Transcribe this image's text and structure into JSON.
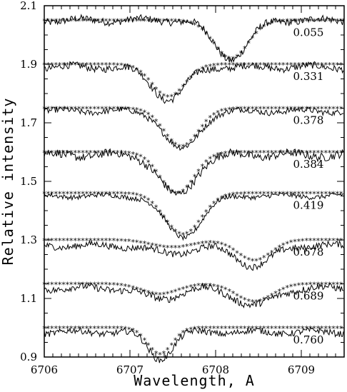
{
  "chart_data": {
    "type": "line",
    "xlabel": "Wavelength, A",
    "ylabel": "Relative intensity",
    "xlim": [
      6706,
      6709.5
    ],
    "ylim": [
      0.9,
      2.1
    ],
    "xticks": [
      "6706",
      "6707",
      "6708",
      "6709"
    ],
    "yticks": [
      "0.9",
      "1.1",
      "1.3",
      "1.5",
      "1.7",
      "1.9",
      "2.1"
    ],
    "grid": false,
    "series": [
      {
        "name": "0.055",
        "continuum": 2.05,
        "depth": 0.13,
        "center": 6708.18,
        "width": 0.28,
        "noise": 0.012,
        "shift": 0.0
      },
      {
        "name": "0.331",
        "continuum": 1.9,
        "depth": 0.11,
        "center": 6707.45,
        "width": 0.27,
        "noise": 0.012,
        "shift": -0.01
      },
      {
        "name": "0.378",
        "continuum": 1.75,
        "depth": 0.13,
        "center": 6707.6,
        "width": 0.28,
        "noise": 0.01,
        "shift": -0.01
      },
      {
        "name": "0.384",
        "continuum": 1.6,
        "depth": 0.14,
        "center": 6707.55,
        "width": 0.28,
        "noise": 0.014,
        "shift": -0.01
      },
      {
        "name": "0.419",
        "continuum": 1.46,
        "depth": 0.14,
        "center": 6707.62,
        "width": 0.3,
        "noise": 0.008,
        "shift": -0.01
      },
      {
        "name": "0.678",
        "continuum": 1.3,
        "depth": 0.07,
        "center": 6708.45,
        "width": 0.28,
        "noise": 0.011,
        "shift": -0.02,
        "secondary": {
          "center": 6707.5,
          "depth": 0.025,
          "width": 0.35
        }
      },
      {
        "name": "0.689",
        "continuum": 1.15,
        "depth": 0.06,
        "center": 6708.45,
        "width": 0.3,
        "noise": 0.012,
        "shift": -0.015,
        "secondary": {
          "center": 6707.35,
          "depth": 0.035,
          "width": 0.3
        }
      },
      {
        "name": "0.760",
        "continuum": 1.0,
        "depth": 0.09,
        "center": 6707.35,
        "width": 0.2,
        "noise": 0.011,
        "shift": -0.015
      }
    ]
  }
}
